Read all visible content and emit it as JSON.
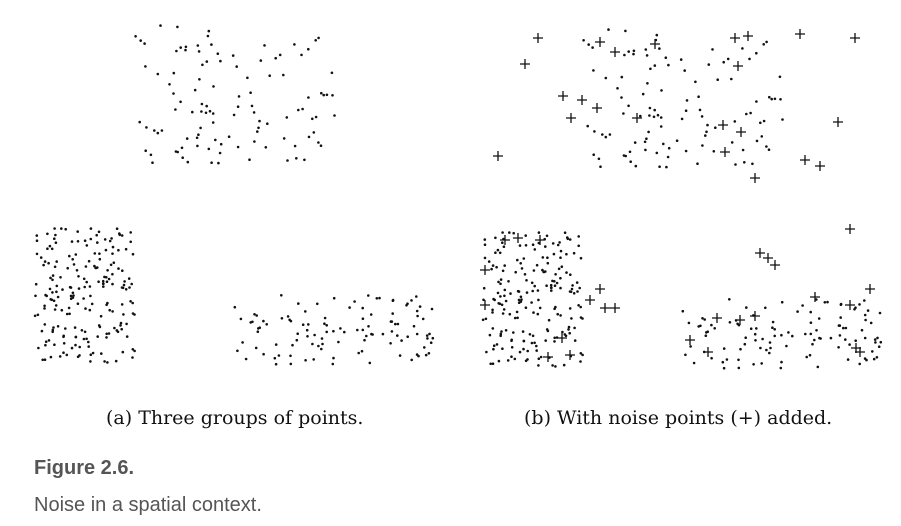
{
  "figure": {
    "label": "Figure 2.6.",
    "description": "Noise in a spatial context."
  },
  "panels": [
    {
      "caption": "(a) Three groups of points."
    },
    {
      "caption": "(b) With noise points (+) added."
    }
  ],
  "colors": {
    "point": "#111111",
    "noise": "#111111",
    "caption": "#111111",
    "figure_text": "#555555"
  }
}
